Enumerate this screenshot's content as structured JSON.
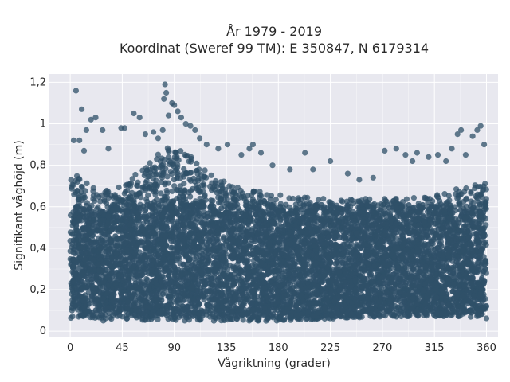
{
  "chart_data": {
    "type": "scatter",
    "title_line1": "År 1979 - 2019",
    "title_line2": "Koordinat (Sweref 99 TM): E 350847, N 6179314",
    "xlabel": "Vågriktning (grader)",
    "ylabel": "Signifikant våghöjd (m)",
    "xlim": [
      -18,
      370
    ],
    "ylim": [
      -0.03,
      1.24
    ],
    "xticks": [
      0,
      45,
      90,
      135,
      180,
      225,
      270,
      315,
      360
    ],
    "yticks": [
      0,
      0.2,
      0.4,
      0.6,
      0.8,
      1.0,
      1.2
    ],
    "ytick_labels": [
      "0",
      "0,2",
      "0,4",
      "0,6",
      "0,8",
      "1",
      "1,2"
    ],
    "grid": true,
    "marker_color": "#2f5068",
    "plot_bg": "#e8e8ef",
    "dense_band": {
      "x": [
        0,
        360
      ],
      "y": [
        0.05,
        0.65
      ]
    },
    "envelope": [
      {
        "x": 0,
        "y_min": 0.06,
        "y_max": 0.78
      },
      {
        "x": 15,
        "y_min": 0.06,
        "y_max": 0.72
      },
      {
        "x": 30,
        "y_min": 0.05,
        "y_max": 0.68
      },
      {
        "x": 45,
        "y_min": 0.05,
        "y_max": 0.7
      },
      {
        "x": 60,
        "y_min": 0.05,
        "y_max": 0.78
      },
      {
        "x": 75,
        "y_min": 0.05,
        "y_max": 0.86
      },
      {
        "x": 90,
        "y_min": 0.05,
        "y_max": 0.9
      },
      {
        "x": 105,
        "y_min": 0.05,
        "y_max": 0.84
      },
      {
        "x": 120,
        "y_min": 0.05,
        "y_max": 0.76
      },
      {
        "x": 135,
        "y_min": 0.05,
        "y_max": 0.72
      },
      {
        "x": 150,
        "y_min": 0.05,
        "y_max": 0.7
      },
      {
        "x": 165,
        "y_min": 0.05,
        "y_max": 0.68
      },
      {
        "x": 180,
        "y_min": 0.05,
        "y_max": 0.66
      },
      {
        "x": 225,
        "y_min": 0.06,
        "y_max": 0.64
      },
      {
        "x": 270,
        "y_min": 0.07,
        "y_max": 0.64
      },
      {
        "x": 315,
        "y_min": 0.07,
        "y_max": 0.66
      },
      {
        "x": 345,
        "y_min": 0.07,
        "y_max": 0.7
      },
      {
        "x": 360,
        "y_min": 0.06,
        "y_max": 0.72
      }
    ],
    "outliers": [
      [
        5,
        1.16
      ],
      [
        10,
        1.07
      ],
      [
        14,
        0.97
      ],
      [
        18,
        1.02
      ],
      [
        22,
        1.03
      ],
      [
        3,
        0.92
      ],
      [
        8,
        0.92
      ],
      [
        12,
        0.87
      ],
      [
        28,
        0.97
      ],
      [
        33,
        0.88
      ],
      [
        44,
        0.98
      ],
      [
        47,
        0.98
      ],
      [
        55,
        1.05
      ],
      [
        60,
        1.03
      ],
      [
        65,
        0.95
      ],
      [
        72,
        0.96
      ],
      [
        76,
        0.93
      ],
      [
        80,
        0.97
      ],
      [
        81,
        1.12
      ],
      [
        82,
        1.19
      ],
      [
        83,
        1.15
      ],
      [
        85,
        1.04
      ],
      [
        88,
        1.1
      ],
      [
        90,
        1.09
      ],
      [
        93,
        1.06
      ],
      [
        96,
        1.03
      ],
      [
        100,
        1.0
      ],
      [
        104,
        0.99
      ],
      [
        108,
        0.97
      ],
      [
        112,
        0.93
      ],
      [
        118,
        0.9
      ],
      [
        128,
        0.88
      ],
      [
        136,
        0.9
      ],
      [
        148,
        0.85
      ],
      [
        155,
        0.88
      ],
      [
        158,
        0.9
      ],
      [
        165,
        0.86
      ],
      [
        175,
        0.8
      ],
      [
        190,
        0.78
      ],
      [
        203,
        0.86
      ],
      [
        210,
        0.78
      ],
      [
        225,
        0.82
      ],
      [
        240,
        0.76
      ],
      [
        250,
        0.73
      ],
      [
        262,
        0.74
      ],
      [
        272,
        0.87
      ],
      [
        282,
        0.88
      ],
      [
        290,
        0.85
      ],
      [
        296,
        0.82
      ],
      [
        300,
        0.86
      ],
      [
        310,
        0.84
      ],
      [
        318,
        0.85
      ],
      [
        325,
        0.82
      ],
      [
        330,
        0.88
      ],
      [
        335,
        0.95
      ],
      [
        338,
        0.97
      ],
      [
        342,
        0.85
      ],
      [
        348,
        0.94
      ],
      [
        352,
        0.97
      ],
      [
        355,
        0.99
      ],
      [
        358,
        0.9
      ]
    ]
  }
}
